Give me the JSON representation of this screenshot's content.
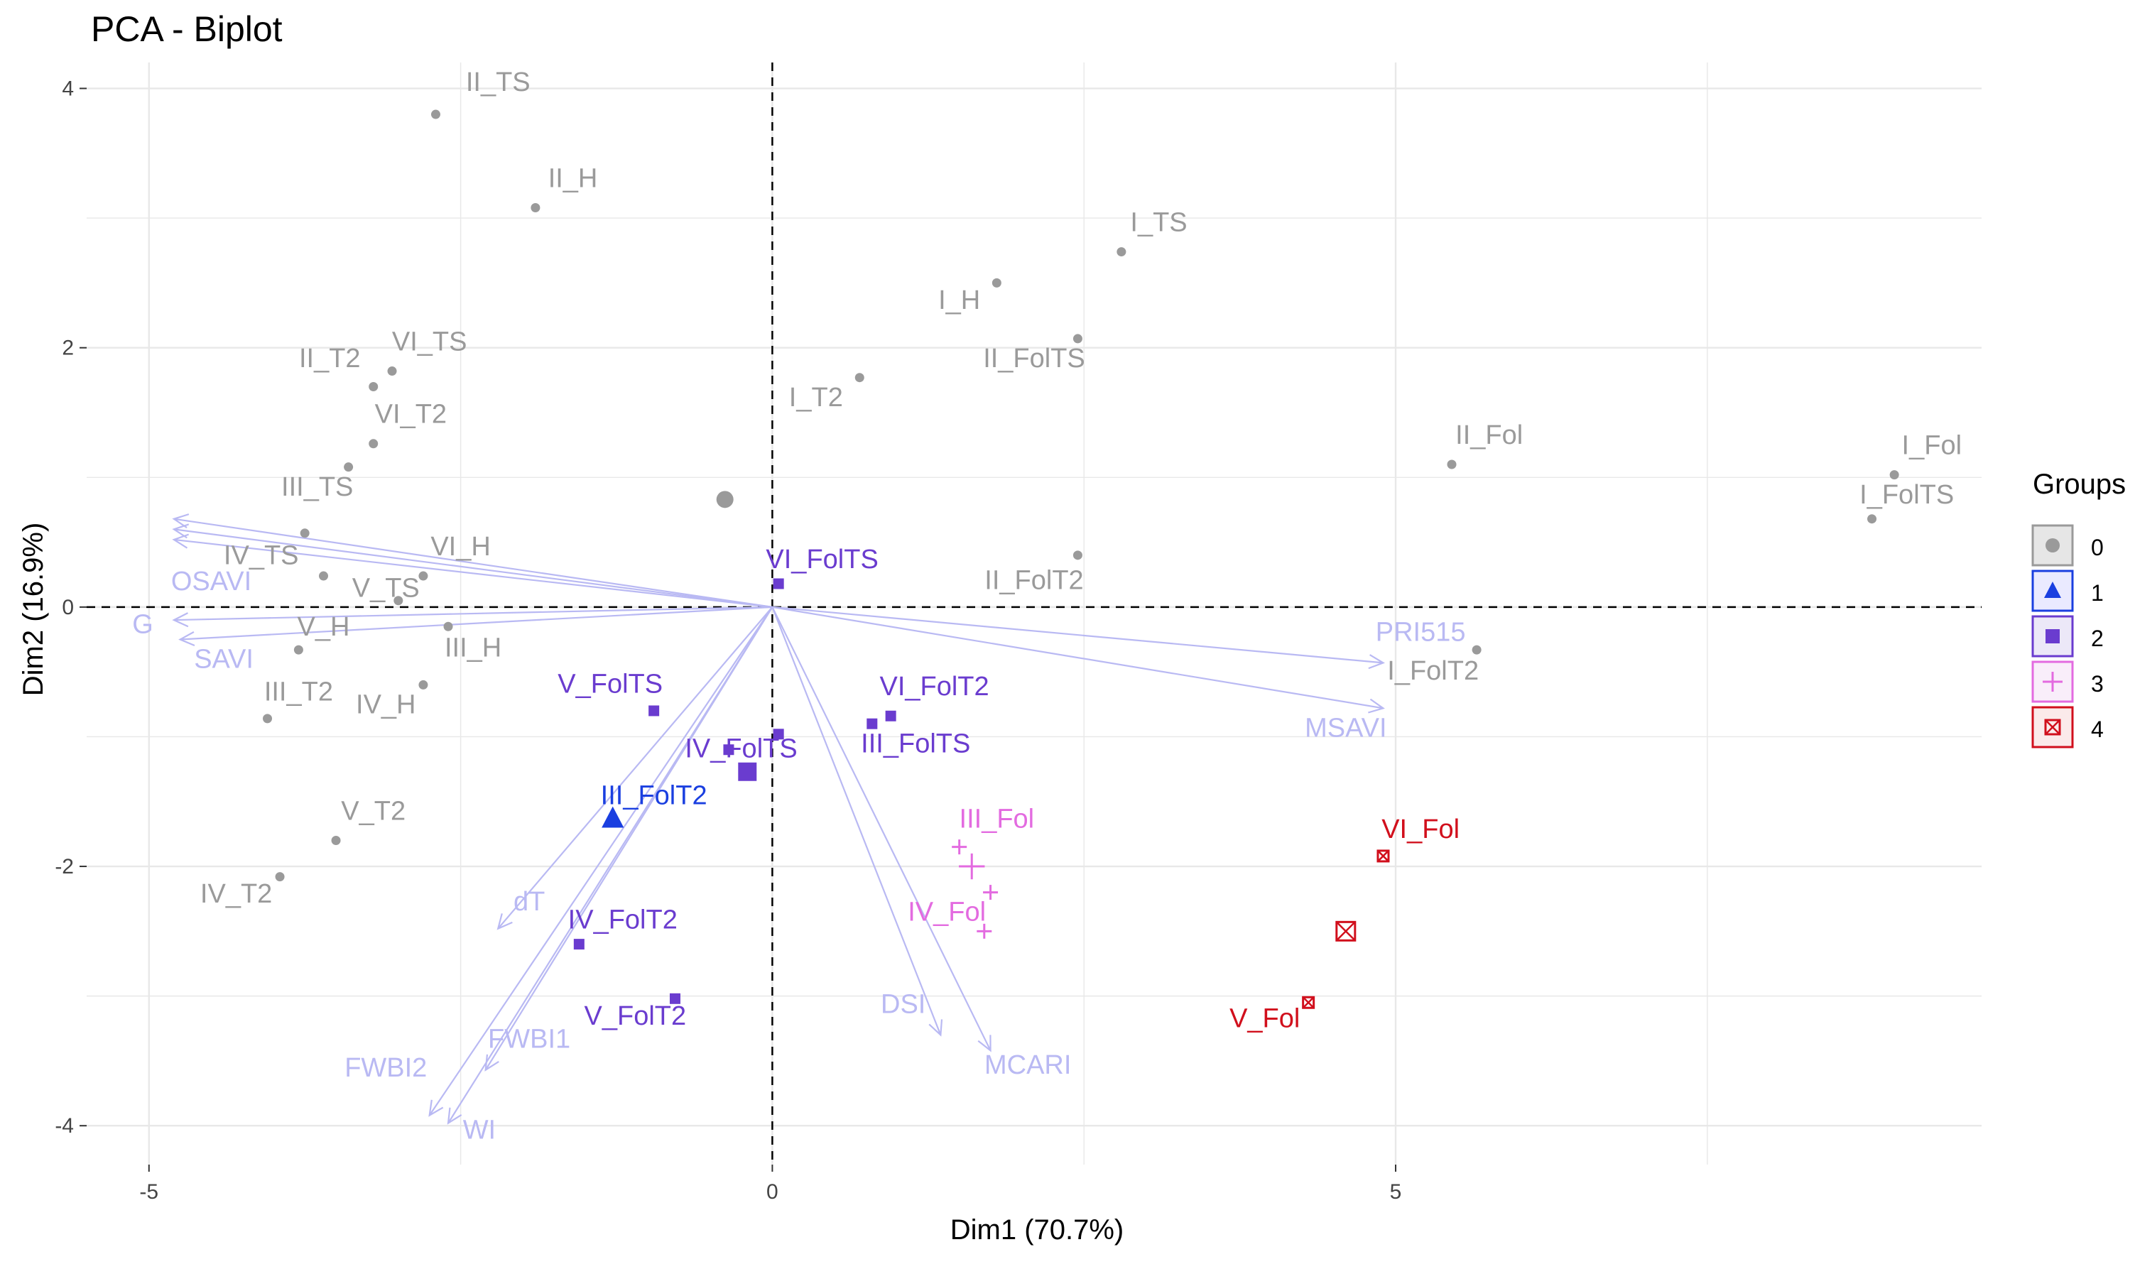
{
  "chart_data": {
    "type": "scatter",
    "title": "PCA - Biplot",
    "xlabel": "Dim1 (70.7%)",
    "ylabel": "Dim2 (16.9%)",
    "xlim": [
      -5.5,
      9.7
    ],
    "ylim": [
      -4.3,
      4.2
    ],
    "x_ticks": [
      -5,
      0,
      5
    ],
    "y_ticks": [
      -4,
      -2,
      0,
      2,
      4
    ],
    "grid": true,
    "legend": {
      "title": "Groups",
      "position": "right",
      "entries": [
        {
          "label": "0",
          "shape": "circle",
          "color": "#9a9a9a",
          "fill": "#e6e6e6"
        },
        {
          "label": "1",
          "shape": "triangle",
          "color": "#1a3fe0",
          "fill": "#eaeaff"
        },
        {
          "label": "2",
          "shape": "square",
          "color": "#6a3ccf",
          "fill": "#ece8f8"
        },
        {
          "label": "3",
          "shape": "plus",
          "color": "#e36be0",
          "fill": "#f9eefa"
        },
        {
          "label": "4",
          "shape": "boxx",
          "color": "#d10f1c",
          "fill": "#fbeaea"
        }
      ]
    },
    "colors": {
      "0": "#9a9a9a",
      "1": "#1a3fe0",
      "2": "#6a3ccf",
      "3": "#e36be0",
      "4": "#d10f1c",
      "variables": "#b9b9f3"
    },
    "points": [
      {
        "label": "II_TS",
        "x": -2.7,
        "y": 3.8,
        "group": "0",
        "lx": -2.2,
        "ly": 3.98
      },
      {
        "label": "II_H",
        "x": -1.9,
        "y": 3.08,
        "group": "0",
        "lx": -1.6,
        "ly": 3.24
      },
      {
        "label": "I_TS",
        "x": 2.8,
        "y": 2.74,
        "group": "0",
        "lx": 3.1,
        "ly": 2.9
      },
      {
        "label": "I_H",
        "x": 1.8,
        "y": 2.5,
        "group": "0",
        "lx": 1.5,
        "ly": 2.3
      },
      {
        "label": "II_FolTS",
        "x": 2.45,
        "y": 2.07,
        "group": "0",
        "lx": 2.1,
        "ly": 1.85
      },
      {
        "label": "I_T2",
        "x": 0.7,
        "y": 1.77,
        "group": "0",
        "lx": 0.35,
        "ly": 1.55
      },
      {
        "label": "VI_TS",
        "x": -3.05,
        "y": 1.82,
        "group": "0",
        "lx": -2.75,
        "ly": 1.98
      },
      {
        "label": "II_T2",
        "x": -3.2,
        "y": 1.7,
        "group": "0",
        "lx": -3.55,
        "ly": 1.85
      },
      {
        "label": "VI_T2",
        "x": -3.2,
        "y": 1.26,
        "group": "0",
        "lx": -2.9,
        "ly": 1.42
      },
      {
        "label": "",
        "x": -3.4,
        "y": 1.08,
        "group": "0"
      },
      {
        "label": "III_TS",
        "x": -3.75,
        "y": 0.57,
        "group": "0",
        "lx": -3.65,
        "ly": 0.86
      },
      {
        "label": "IV_TS",
        "x": -3.6,
        "y": 0.24,
        "group": "0",
        "lx": -4.1,
        "ly": 0.33
      },
      {
        "label": "VI_H",
        "x": -2.8,
        "y": 0.24,
        "group": "0",
        "lx": -2.5,
        "ly": 0.4
      },
      {
        "label": "V_TS",
        "x": -3.0,
        "y": 0.05,
        "group": "0",
        "lx": -3.1,
        "ly": 0.08
      },
      {
        "label": "V_H",
        "x": -3.8,
        "y": -0.33,
        "group": "0",
        "lx": -3.6,
        "ly": -0.22
      },
      {
        "label": "III_H",
        "x": -2.6,
        "y": -0.15,
        "group": "0",
        "lx": -2.4,
        "ly": -0.38
      },
      {
        "label": "III_T2",
        "x": -4.05,
        "y": -0.86,
        "group": "0",
        "lx": -3.8,
        "ly": -0.72
      },
      {
        "label": "IV_H",
        "x": -2.8,
        "y": -0.6,
        "group": "0",
        "lx": -3.1,
        "ly": -0.82
      },
      {
        "label": "V_T2",
        "x": -3.5,
        "y": -1.8,
        "group": "0",
        "lx": -3.2,
        "ly": -1.64
      },
      {
        "label": "IV_T2",
        "x": -3.95,
        "y": -2.08,
        "group": "0",
        "lx": -4.3,
        "ly": -2.28
      },
      {
        "label": "II_Fol",
        "x": 5.45,
        "y": 1.1,
        "group": "0",
        "lx": 5.75,
        "ly": 1.26
      },
      {
        "label": "II_FolT2",
        "x": 2.45,
        "y": 0.4,
        "group": "0",
        "lx": 2.1,
        "ly": 0.14
      },
      {
        "label": "I_Fol",
        "x": 9.0,
        "y": 1.02,
        "group": "0",
        "lx": 9.3,
        "ly": 1.18
      },
      {
        "label": "I_FolTS",
        "x": 8.82,
        "y": 0.68,
        "group": "0",
        "lx": 9.1,
        "ly": 0.8
      },
      {
        "label": "I_FolT2",
        "x": 5.65,
        "y": -0.33,
        "group": "0",
        "lx": 5.3,
        "ly": -0.56
      },
      {
        "label": "VI_FolTS",
        "x": 0.05,
        "y": 0.18,
        "group": "2",
        "lx": 0.4,
        "ly": 0.3
      },
      {
        "label": "V_FolTS",
        "x": -0.95,
        "y": -0.8,
        "group": "2",
        "lx": -1.3,
        "ly": -0.66
      },
      {
        "label": "VI_FolT2",
        "x": 0.95,
        "y": -0.84,
        "group": "2",
        "lx": 1.3,
        "ly": -0.68
      },
      {
        "label": "",
        "x": 0.8,
        "y": -0.9,
        "group": "2"
      },
      {
        "label": "III_FolTS",
        "x": 0.05,
        "y": -0.98,
        "group": "2",
        "lx": 1.15,
        "ly": -1.12
      },
      {
        "label": "IV_FolTS",
        "x": -0.35,
        "y": -1.1,
        "group": "2",
        "lx": -0.25,
        "ly": -1.16
      },
      {
        "label": "III_FolT2",
        "x": -1.28,
        "y": -1.63,
        "group": "1",
        "lx": -0.95,
        "ly": -1.52
      },
      {
        "label": "IV_FolT2",
        "x": -1.55,
        "y": -2.6,
        "group": "2",
        "lx": -1.2,
        "ly": -2.48
      },
      {
        "label": "V_FolT2",
        "x": -0.78,
        "y": -3.02,
        "group": "2",
        "lx": -1.1,
        "ly": -3.22
      },
      {
        "label": "III_Fol",
        "x": 1.5,
        "y": -1.85,
        "group": "3",
        "lx": 1.8,
        "ly": -1.7
      },
      {
        "label": "",
        "x": 1.75,
        "y": -2.2,
        "group": "3"
      },
      {
        "label": "IV_Fol",
        "x": 1.7,
        "y": -2.5,
        "group": "3",
        "lx": 1.4,
        "ly": -2.42
      },
      {
        "label": "VI_Fol",
        "x": 4.9,
        "y": -1.92,
        "group": "4",
        "lx": 5.2,
        "ly": -1.78
      },
      {
        "label": "V_Fol",
        "x": 4.3,
        "y": -3.05,
        "group": "4",
        "lx": 3.95,
        "ly": -3.24
      }
    ],
    "centroids": [
      {
        "group": "0",
        "x": -0.38,
        "y": 0.83
      },
      {
        "group": "2",
        "x": -0.2,
        "y": -1.27
      },
      {
        "group": "1",
        "x": -1.28,
        "y": -1.63
      },
      {
        "group": "3",
        "x": 1.6,
        "y": -2.0
      },
      {
        "group": "4",
        "x": 4.6,
        "y": -2.5
      }
    ],
    "variables": [
      {
        "label": "OSAVI",
        "x": -4.8,
        "y": 0.52,
        "lx": -4.5,
        "ly": 0.13
      },
      {
        "label": "",
        "x": -4.8,
        "y": 0.6
      },
      {
        "label": "",
        "x": -4.8,
        "y": 0.68
      },
      {
        "label": "G",
        "x": -4.8,
        "y": -0.1,
        "lx": -5.05,
        "ly": -0.2
      },
      {
        "label": "SAVI",
        "x": -4.75,
        "y": -0.25,
        "lx": -4.4,
        "ly": -0.47
      },
      {
        "label": "PRI515",
        "x": 4.9,
        "y": -0.43,
        "lx": 5.2,
        "ly": -0.26
      },
      {
        "label": "MSAVI",
        "x": 4.9,
        "y": -0.78,
        "lx": 4.6,
        "ly": -1.0
      },
      {
        "label": "dT",
        "x": -2.2,
        "y": -2.48,
        "lx": -1.95,
        "ly": -2.34
      },
      {
        "label": "FWBI2",
        "x": -2.75,
        "y": -3.92,
        "lx": -3.1,
        "ly": -3.62
      },
      {
        "label": "FWBI1",
        "x": -2.3,
        "y": -3.57,
        "lx": -1.95,
        "ly": -3.4
      },
      {
        "label": "WI",
        "x": -2.6,
        "y": -3.98,
        "lx": -2.35,
        "ly": -4.1
      },
      {
        "label": "DSI",
        "x": 1.35,
        "y": -3.3,
        "lx": 1.05,
        "ly": -3.13
      },
      {
        "label": "MCARI",
        "x": 1.75,
        "y": -3.42,
        "lx": 2.05,
        "ly": -3.6
      }
    ]
  }
}
